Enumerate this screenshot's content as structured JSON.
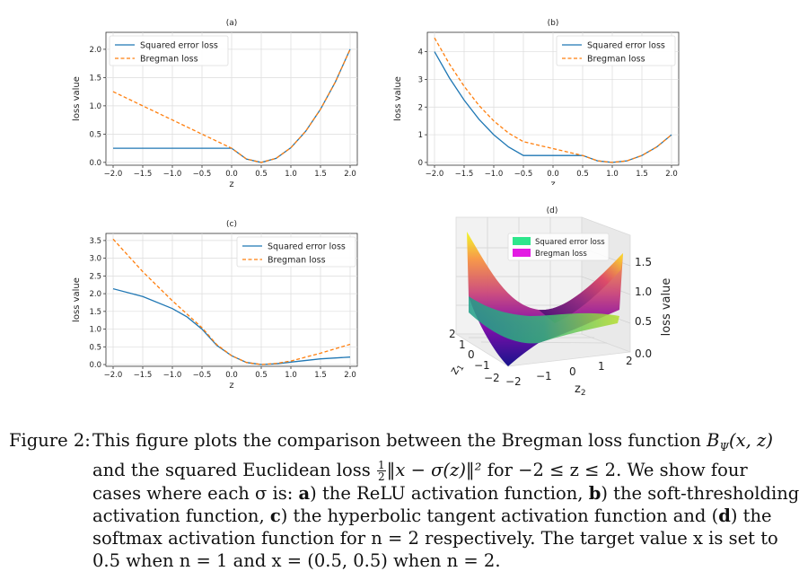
{
  "chart_data": [
    {
      "type": "line",
      "title": "(a)",
      "xlabel": "z",
      "ylabel": "loss value",
      "xlim": [
        -2.0,
        2.0
      ],
      "ylim": [
        -0.05,
        2.3
      ],
      "xticks": [
        "−2.0",
        "−1.5",
        "−1.0",
        "−0.5",
        "0.0",
        "0.5",
        "1.0",
        "1.5",
        "2.0"
      ],
      "yticks": [
        "0.0",
        "0.5",
        "1.0",
        "1.5",
        "2.0"
      ],
      "grid": true,
      "legend_position": "top-left",
      "series": [
        {
          "name": "Squared error loss",
          "color": "#1f77b4",
          "style": "solid",
          "x": [
            -2.0,
            -1.5,
            -1.0,
            -0.5,
            0.0,
            0.25,
            0.5,
            0.75,
            1.0,
            1.25,
            1.5,
            1.75,
            2.0
          ],
          "y": [
            0.25,
            0.25,
            0.25,
            0.25,
            0.25,
            0.06,
            0.0,
            0.07,
            0.26,
            0.55,
            0.94,
            1.42,
            2.0
          ]
        },
        {
          "name": "Bregman loss",
          "color": "#ff7f0e",
          "style": "dashed",
          "x": [
            -2.0,
            -1.5,
            -1.0,
            -0.5,
            0.0,
            0.25,
            0.5,
            0.75,
            1.0,
            1.25,
            1.5,
            1.75,
            2.0
          ],
          "y": [
            1.25,
            1.0,
            0.75,
            0.5,
            0.25,
            0.06,
            0.0,
            0.07,
            0.26,
            0.55,
            0.94,
            1.42,
            2.0
          ]
        }
      ]
    },
    {
      "type": "line",
      "title": "(b)",
      "xlabel": "z",
      "ylabel": "loss value",
      "xlim": [
        -2.0,
        2.0
      ],
      "ylim": [
        -0.1,
        4.7
      ],
      "xticks": [
        "−2.0",
        "−1.5",
        "−1.0",
        "−0.5",
        "0.0",
        "0.5",
        "1.0",
        "1.5",
        "2.0"
      ],
      "yticks": [
        "0",
        "1",
        "2",
        "3",
        "4"
      ],
      "grid": true,
      "legend_position": "top-right",
      "series": [
        {
          "name": "Squared error loss",
          "color": "#1f77b4",
          "style": "solid",
          "x": [
            -2.0,
            -1.75,
            -1.5,
            -1.25,
            -1.0,
            -0.75,
            -0.5,
            0.0,
            0.5,
            0.75,
            1.0,
            1.25,
            1.5,
            1.75,
            2.0
          ],
          "y": [
            4.0,
            3.06,
            2.25,
            1.56,
            1.0,
            0.56,
            0.25,
            0.25,
            0.25,
            0.06,
            0.0,
            0.06,
            0.25,
            0.56,
            1.0
          ]
        },
        {
          "name": "Bregman loss",
          "color": "#ff7f0e",
          "style": "dashed",
          "x": [
            -2.0,
            -1.75,
            -1.5,
            -1.25,
            -1.0,
            -0.75,
            -0.5,
            0.0,
            0.5,
            0.75,
            1.0,
            1.25,
            1.5,
            1.75,
            2.0
          ],
          "y": [
            4.5,
            3.56,
            2.75,
            2.06,
            1.5,
            1.06,
            0.75,
            0.5,
            0.25,
            0.06,
            0.0,
            0.06,
            0.25,
            0.56,
            1.0
          ]
        }
      ]
    },
    {
      "type": "line",
      "title": "(c)",
      "xlabel": "z",
      "ylabel": "loss value",
      "xlim": [
        -2.0,
        2.0
      ],
      "ylim": [
        -0.05,
        3.7
      ],
      "xticks": [
        "−2.0",
        "−1.5",
        "−1.0",
        "−0.5",
        "0.0",
        "0.5",
        "1.0",
        "1.5",
        "2.0"
      ],
      "yticks": [
        "0.0",
        "0.5",
        "1.0",
        "1.5",
        "2.0",
        "2.5",
        "3.0",
        "3.5"
      ],
      "grid": true,
      "legend_position": "top-right",
      "series": [
        {
          "name": "Squared error loss",
          "color": "#1f77b4",
          "style": "solid",
          "x": [
            -2.0,
            -1.5,
            -1.0,
            -0.75,
            -0.5,
            -0.25,
            0.0,
            0.25,
            0.5,
            0.75,
            1.0,
            1.5,
            2.0
          ],
          "y": [
            2.14,
            1.92,
            1.58,
            1.34,
            1.0,
            0.54,
            0.25,
            0.06,
            0.0,
            0.02,
            0.07,
            0.16,
            0.21
          ]
        },
        {
          "name": "Bregman loss",
          "color": "#ff7f0e",
          "style": "dashed",
          "x": [
            -2.0,
            -1.5,
            -1.0,
            -0.75,
            -0.5,
            -0.25,
            0.0,
            0.25,
            0.5,
            0.75,
            1.0,
            1.5,
            2.0
          ],
          "y": [
            3.54,
            2.62,
            1.8,
            1.42,
            1.04,
            0.56,
            0.25,
            0.06,
            0.0,
            0.03,
            0.1,
            0.32,
            0.57
          ]
        }
      ]
    },
    {
      "type": "surface",
      "title": "(d)",
      "xlabel": "z2",
      "ylabel": "z1",
      "zlabel": "loss value",
      "x_ticks": [
        "−2",
        "−1",
        "0",
        "1",
        "2"
      ],
      "y_ticks": [
        "−2",
        "−1",
        "0",
        "1",
        "2"
      ],
      "z_ticks": [
        "0.0",
        "0.5",
        "1.0",
        "1.5"
      ],
      "legend_position": "top-center",
      "series": [
        {
          "name": "Squared error loss",
          "color": "#2ee68c"
        },
        {
          "name": "Bregman loss",
          "color": "#e31ae3"
        }
      ]
    }
  ],
  "caption": {
    "label": "Figure 2:",
    "line1": {
      "pre": "This figure plots the comparison between the Bregman loss function "
    },
    "line2": {
      "pre": "and the squared Euclidean loss ",
      "frac_num": "1",
      "frac_den": "2",
      "post": " for −2 ≤ z ≤ 2.  We show four"
    },
    "line3": {
      "pre": "cases where each σ is: ",
      "a": "a",
      "a_text": ") the ReLU activation function, ",
      "b": "b",
      "b_text": ") the soft-thresholding"
    },
    "line4": {
      "pre": "activation function, ",
      "c": "c",
      "c_text": ") the hyperbolic tangent activation function and (",
      "d": "d",
      "d_text": ") the"
    },
    "line5": {
      "text": "softmax activation function for n = 2 respectively.  The target value x is set to"
    },
    "line6": {
      "text": "0.5 when n = 1 and x = (0.5, 0.5) when n = 2."
    },
    "math_B": "B",
    "math_B_sub": "Ψ",
    "math_B_args": "(x, z)",
    "math_norm": "‖x − σ(z)‖²"
  }
}
